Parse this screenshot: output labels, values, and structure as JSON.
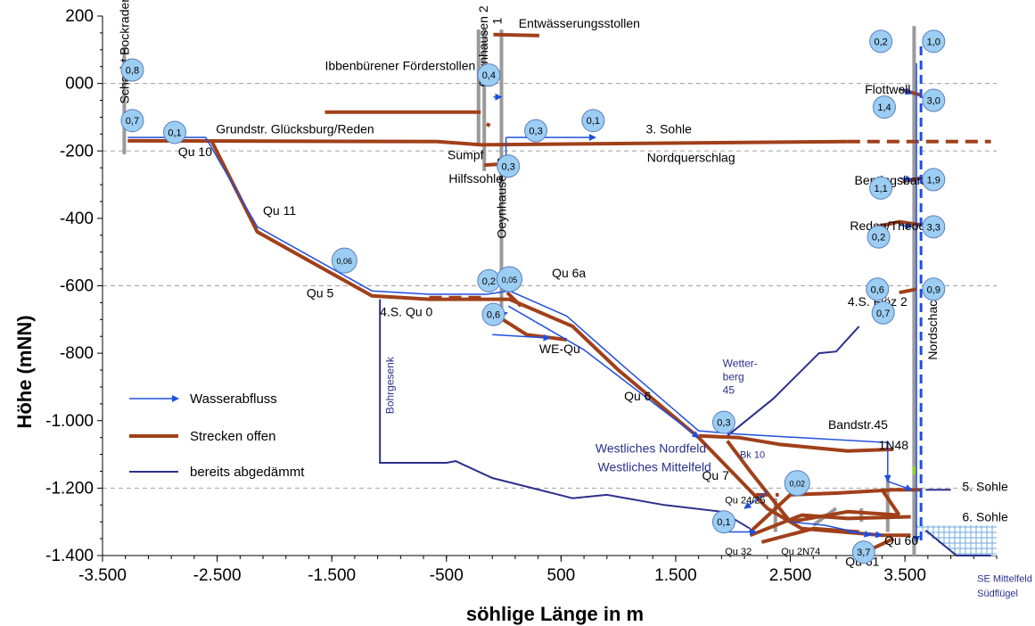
{
  "axes": {
    "xlabel": "söhlige Länge in m",
    "ylabel": "Höhe (mNN)",
    "xlim": [
      -3500,
      4300
    ],
    "ylim": [
      -1400,
      200
    ],
    "x_ticks": [
      {
        "v": -3500,
        "label": "-3.500"
      },
      {
        "v": -2500,
        "label": "-2.500"
      },
      {
        "v": -1500,
        "label": "-1.500"
      },
      {
        "v": -500,
        "label": "-500"
      },
      {
        "v": 500,
        "label": "500"
      },
      {
        "v": 1500,
        "label": "1.500"
      },
      {
        "v": 2500,
        "label": "2.500"
      },
      {
        "v": 3500,
        "label": "3.500"
      }
    ],
    "y_ticks": [
      {
        "v": 200,
        "label": "200"
      },
      {
        "v": 0,
        "label": "000"
      },
      {
        "v": -200,
        "label": "-200"
      },
      {
        "v": -400,
        "label": "-400"
      },
      {
        "v": -600,
        "label": "-600"
      },
      {
        "v": -800,
        "label": "-800"
      },
      {
        "v": -1000,
        "label": "-1.000"
      },
      {
        "v": -1200,
        "label": "-1.200"
      },
      {
        "v": -1400,
        "label": "-1.400"
      }
    ],
    "gridlines": [
      0,
      -200,
      -600,
      -1200
    ]
  },
  "colors": {
    "strecke": "#A0401A",
    "abfluss": "#1F4FE0",
    "damm": "#2B2F8C",
    "shaft": "#9A9A9A",
    "bubble_fill": "#9CCDF2",
    "bubble_stroke": "#5A7FBF",
    "grid": "#A0A0A0",
    "label_blue": "#2B2F8C",
    "hatch": "#6FA8DC"
  },
  "legend": [
    {
      "label": "Wasserabfluss",
      "kind": "abfluss"
    },
    {
      "label": "Strecken offen",
      "kind": "strecke"
    },
    {
      "label": "bereits abgedämmt",
      "kind": "damm"
    }
  ],
  "labels": [
    {
      "text": "Schacht Bockraden",
      "x": -3270,
      "y": -60,
      "rotate": -90,
      "size": 14,
      "color": "#000"
    },
    {
      "text": "Grundstr. Glücksburg/Reden",
      "x": -2510,
      "y": -148,
      "size": 14,
      "color": "#000"
    },
    {
      "text": "Qu 10",
      "x": -2840,
      "y": -215,
      "size": 14,
      "color": "#000"
    },
    {
      "text": "Qu 11",
      "x": -2100,
      "y": -390,
      "size": 14,
      "color": "#000"
    },
    {
      "text": "Qu 5",
      "x": -1720,
      "y": -635,
      "size": 14,
      "color": "#000"
    },
    {
      "text": "Bohrgesenk",
      "x": -960,
      "y": -980,
      "rotate": -90,
      "size": 12,
      "color": "#2B2F8C"
    },
    {
      "text": "4.S. Qu 0",
      "x": -1080,
      "y": -690,
      "size": 14,
      "color": "#000"
    },
    {
      "text": "Ibbenbürener Förderstollen",
      "x": -1560,
      "y": 40,
      "size": 14,
      "color": "#000"
    },
    {
      "text": "Entwässerungsstollen",
      "x": 130,
      "y": 165,
      "size": 14,
      "color": "#000"
    },
    {
      "text": "Oeynhausen 2",
      "x": -140,
      "y": -10,
      "rotate": -90,
      "size": 14,
      "color": "#000"
    },
    {
      "text": "1",
      "x": -20,
      "y": 175,
      "rotate": -90,
      "size": 14,
      "color": "#000"
    },
    {
      "text": "Sumpf",
      "x": -490,
      "y": -225,
      "size": 14,
      "color": "#000"
    },
    {
      "text": "Hilfssohle",
      "x": -480,
      "y": -295,
      "size": 14,
      "color": "#000"
    },
    {
      "text": "Oeynhausen 3",
      "x": 20,
      "y": -460,
      "rotate": -90,
      "size": 14,
      "color": "#000"
    },
    {
      "text": "3. Sohle",
      "x": 1240,
      "y": -148,
      "size": 14,
      "color": "#000"
    },
    {
      "text": "Nordquerschlag",
      "x": 1250,
      "y": -232,
      "size": 14,
      "color": "#000"
    },
    {
      "text": "Qu 6a",
      "x": 420,
      "y": -575,
      "size": 14,
      "color": "#000"
    },
    {
      "text": "WE-Qu",
      "x": 310,
      "y": -800,
      "size": 14,
      "color": "#000"
    },
    {
      "text": "Qu 6",
      "x": 1050,
      "y": -940,
      "size": 14,
      "color": "#000"
    },
    {
      "text": "Wetter-",
      "x": 1910,
      "y": -840,
      "size": 12,
      "color": "#2B2F8C"
    },
    {
      "text": "berg",
      "x": 1910,
      "y": -880,
      "size": 12,
      "color": "#2B2F8C"
    },
    {
      "text": "45",
      "x": 1910,
      "y": -920,
      "size": 12,
      "color": "#2B2F8C"
    },
    {
      "text": "Westliches Nordfeld",
      "x": 800,
      "y": -1095,
      "size": 14,
      "color": "#2B2F8C"
    },
    {
      "text": "Westliches Mittelfeld",
      "x": 820,
      "y": -1150,
      "size": 14,
      "color": "#2B2F8C"
    },
    {
      "text": "Qu 7",
      "x": 1730,
      "y": -1175,
      "size": 14,
      "color": "#000"
    },
    {
      "text": "Bandstr.45",
      "x": 2830,
      "y": -1025,
      "size": 14,
      "color": "#000"
    },
    {
      "text": "Bk 10",
      "x": 2060,
      "y": -1110,
      "size": 11,
      "color": "#2B2F8C"
    },
    {
      "text": "1N48",
      "x": 3270,
      "y": -1085,
      "size": 14,
      "color": "#000"
    },
    {
      "text": "Qu 24/25",
      "x": 1930,
      "y": -1245,
      "size": 11,
      "color": "#000"
    },
    {
      "text": "Qu 32",
      "x": 1930,
      "y": -1398,
      "size": 11,
      "color": "#000"
    },
    {
      "text": "Qu 2N74",
      "x": 2420,
      "y": -1398,
      "size": 11,
      "color": "#000"
    },
    {
      "text": "Qu 61",
      "x": 2980,
      "y": -1430,
      "size": 14,
      "color": "#000"
    },
    {
      "text": "Qu 60",
      "x": 3320,
      "y": -1368,
      "size": 14,
      "color": "#000"
    },
    {
      "text": "5. Sohle",
      "x": 4000,
      "y": -1208,
      "size": 14,
      "color": "#000"
    },
    {
      "text": "6. Sohle",
      "x": 4000,
      "y": -1298,
      "size": 14,
      "color": "#000"
    },
    {
      "text": "Nordschacht",
      "x": 3780,
      "y": -820,
      "rotate": -90,
      "size": 14,
      "color": "#000"
    },
    {
      "text": "Flottwell",
      "x": 3150,
      "y": -30,
      "size": 14,
      "color": "#000"
    },
    {
      "text": "Bentingsbank",
      "x": 3060,
      "y": -300,
      "size": 14,
      "color": "#000"
    },
    {
      "text": "Reden/Theodor",
      "x": 3020,
      "y": -435,
      "size": 14,
      "color": "#000"
    },
    {
      "text": "4.S. Flöz 2",
      "x": 3000,
      "y": -660,
      "size": 14,
      "color": "#000"
    },
    {
      "text": "SE Mittelfeld",
      "x": 4130,
      "y": -1478,
      "size": 11,
      "color": "#2B2F8C"
    },
    {
      "text": "Südflügel",
      "x": 4130,
      "y": -1522,
      "size": 11,
      "color": "#2B2F8C"
    }
  ],
  "bubbles": [
    {
      "v": "0,8",
      "x": -3240,
      "y": 40
    },
    {
      "v": "0,7",
      "x": -3240,
      "y": -110
    },
    {
      "v": "0,1",
      "x": -2870,
      "y": -145
    },
    {
      "v": "0,06",
      "x": -1390,
      "y": -525
    },
    {
      "v": "0,4",
      "x": -130,
      "y": 25
    },
    {
      "v": "0,3",
      "x": 280,
      "y": -140
    },
    {
      "v": "0,1",
      "x": 780,
      "y": -110
    },
    {
      "v": "0,3",
      "x": 40,
      "y": -245
    },
    {
      "v": "0,2",
      "x": -130,
      "y": -585
    },
    {
      "v": "0,05",
      "x": 50,
      "y": -580
    },
    {
      "v": "0,6",
      "x": -90,
      "y": -685
    },
    {
      "v": "0,3",
      "x": 1920,
      "y": -1005
    },
    {
      "v": "0,02",
      "x": 2560,
      "y": -1185
    },
    {
      "v": "0,1",
      "x": 1920,
      "y": -1300
    },
    {
      "v": "3,7",
      "x": 3140,
      "y": -1390
    },
    {
      "v": "0,2",
      "x": 3290,
      "y": 125
    },
    {
      "v": "1,0",
      "x": 3750,
      "y": 125
    },
    {
      "v": "1,4",
      "x": 3320,
      "y": -70
    },
    {
      "v": "3,0",
      "x": 3750,
      "y": -50
    },
    {
      "v": "1,1",
      "x": 3290,
      "y": -310
    },
    {
      "v": "1,9",
      "x": 3750,
      "y": -285
    },
    {
      "v": "0,2",
      "x": 3270,
      "y": -455
    },
    {
      "v": "3,3",
      "x": 3750,
      "y": -425
    },
    {
      "v": "0,6",
      "x": 3260,
      "y": -610
    },
    {
      "v": "0,9",
      "x": 3750,
      "y": -610
    },
    {
      "v": "0,7",
      "x": 3310,
      "y": -680
    }
  ]
}
